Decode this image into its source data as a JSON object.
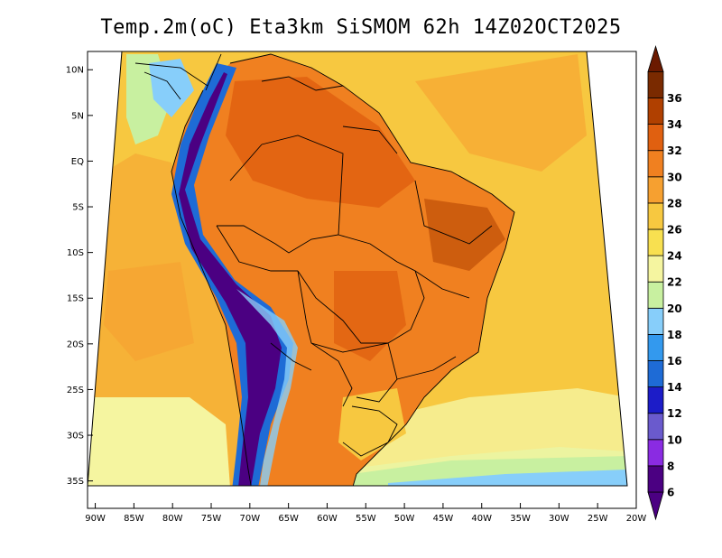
{
  "title": "Temp.2m(oC) Eta3km SiSMOM 62h 14Z02OCT2025",
  "map": {
    "lat_labels": [
      "10N",
      "5N",
      "EQ",
      "5S",
      "10S",
      "15S",
      "20S",
      "25S",
      "30S",
      "35S"
    ],
    "lat_values": [
      10,
      5,
      0,
      -5,
      -10,
      -15,
      -20,
      -25,
      -30,
      -35
    ],
    "lon_labels": [
      "90W",
      "85W",
      "80W",
      "75W",
      "70W",
      "65W",
      "60W",
      "55W",
      "50W",
      "45W",
      "40W",
      "35W",
      "30W",
      "25W",
      "20W"
    ],
    "lon_values": [
      -90,
      -85,
      -80,
      -75,
      -70,
      -65,
      -60,
      -55,
      -50,
      -45,
      -40,
      -35,
      -30,
      -25,
      -20
    ],
    "lon_range": [
      -91,
      -20
    ],
    "lat_range": [
      12,
      -38
    ]
  },
  "colorbar": {
    "labels": [
      "6",
      "8",
      "10",
      "12",
      "14",
      "16",
      "18",
      "20",
      "22",
      "24",
      "26",
      "28",
      "30",
      "32",
      "34",
      "36"
    ],
    "colors": [
      "#4b0082",
      "#8a2be2",
      "#6a5acd",
      "#1c1cc8",
      "#1e6bd6",
      "#3399ee",
      "#87cefa",
      "#c8f0a0",
      "#f5f5a0",
      "#f8e050",
      "#f7c840",
      "#f6a030",
      "#f08020",
      "#e06010",
      "#b04000",
      "#7a2a00"
    ],
    "low_cap": "#4b0082",
    "high_cap": "#6b1a00"
  },
  "colors": {
    "sea_warm": "#f7c840",
    "sea_hot": "#f6a030",
    "sea_cool": "#f5f5a0",
    "land_hot": "#e06010",
    "land_warm": "#f08020",
    "andes_cold": "#4b0082",
    "andes_mid": "#1e6bd6",
    "border": "#000000"
  }
}
